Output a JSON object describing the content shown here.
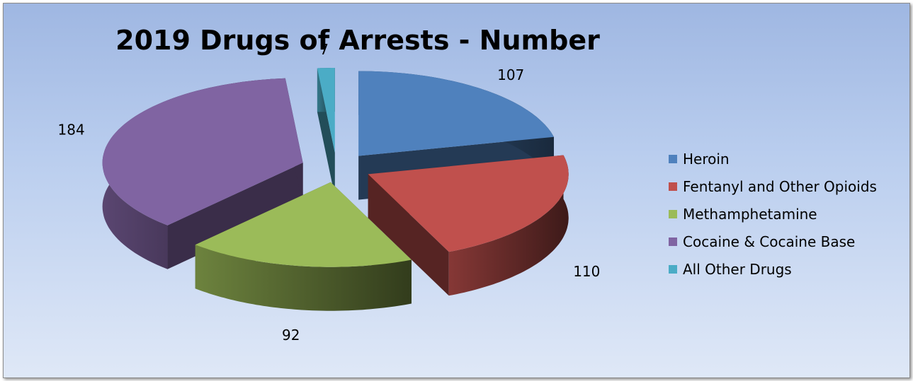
{
  "chart_data": {
    "type": "pie",
    "title": "2019 Drugs of Arrests - Number",
    "categories": [
      "Heroin",
      "Fentanyl and Other Opioids",
      "Methamphetamine",
      "Cocaine & Cocaine Base",
      "All Other Drugs"
    ],
    "values": [
      107,
      110,
      92,
      184,
      7
    ],
    "colors": [
      "#4f81bd",
      "#c0504d",
      "#9bbb59",
      "#8064a2",
      "#4bacc6"
    ],
    "legend_position": "right",
    "exploded": true,
    "three_d": true
  }
}
